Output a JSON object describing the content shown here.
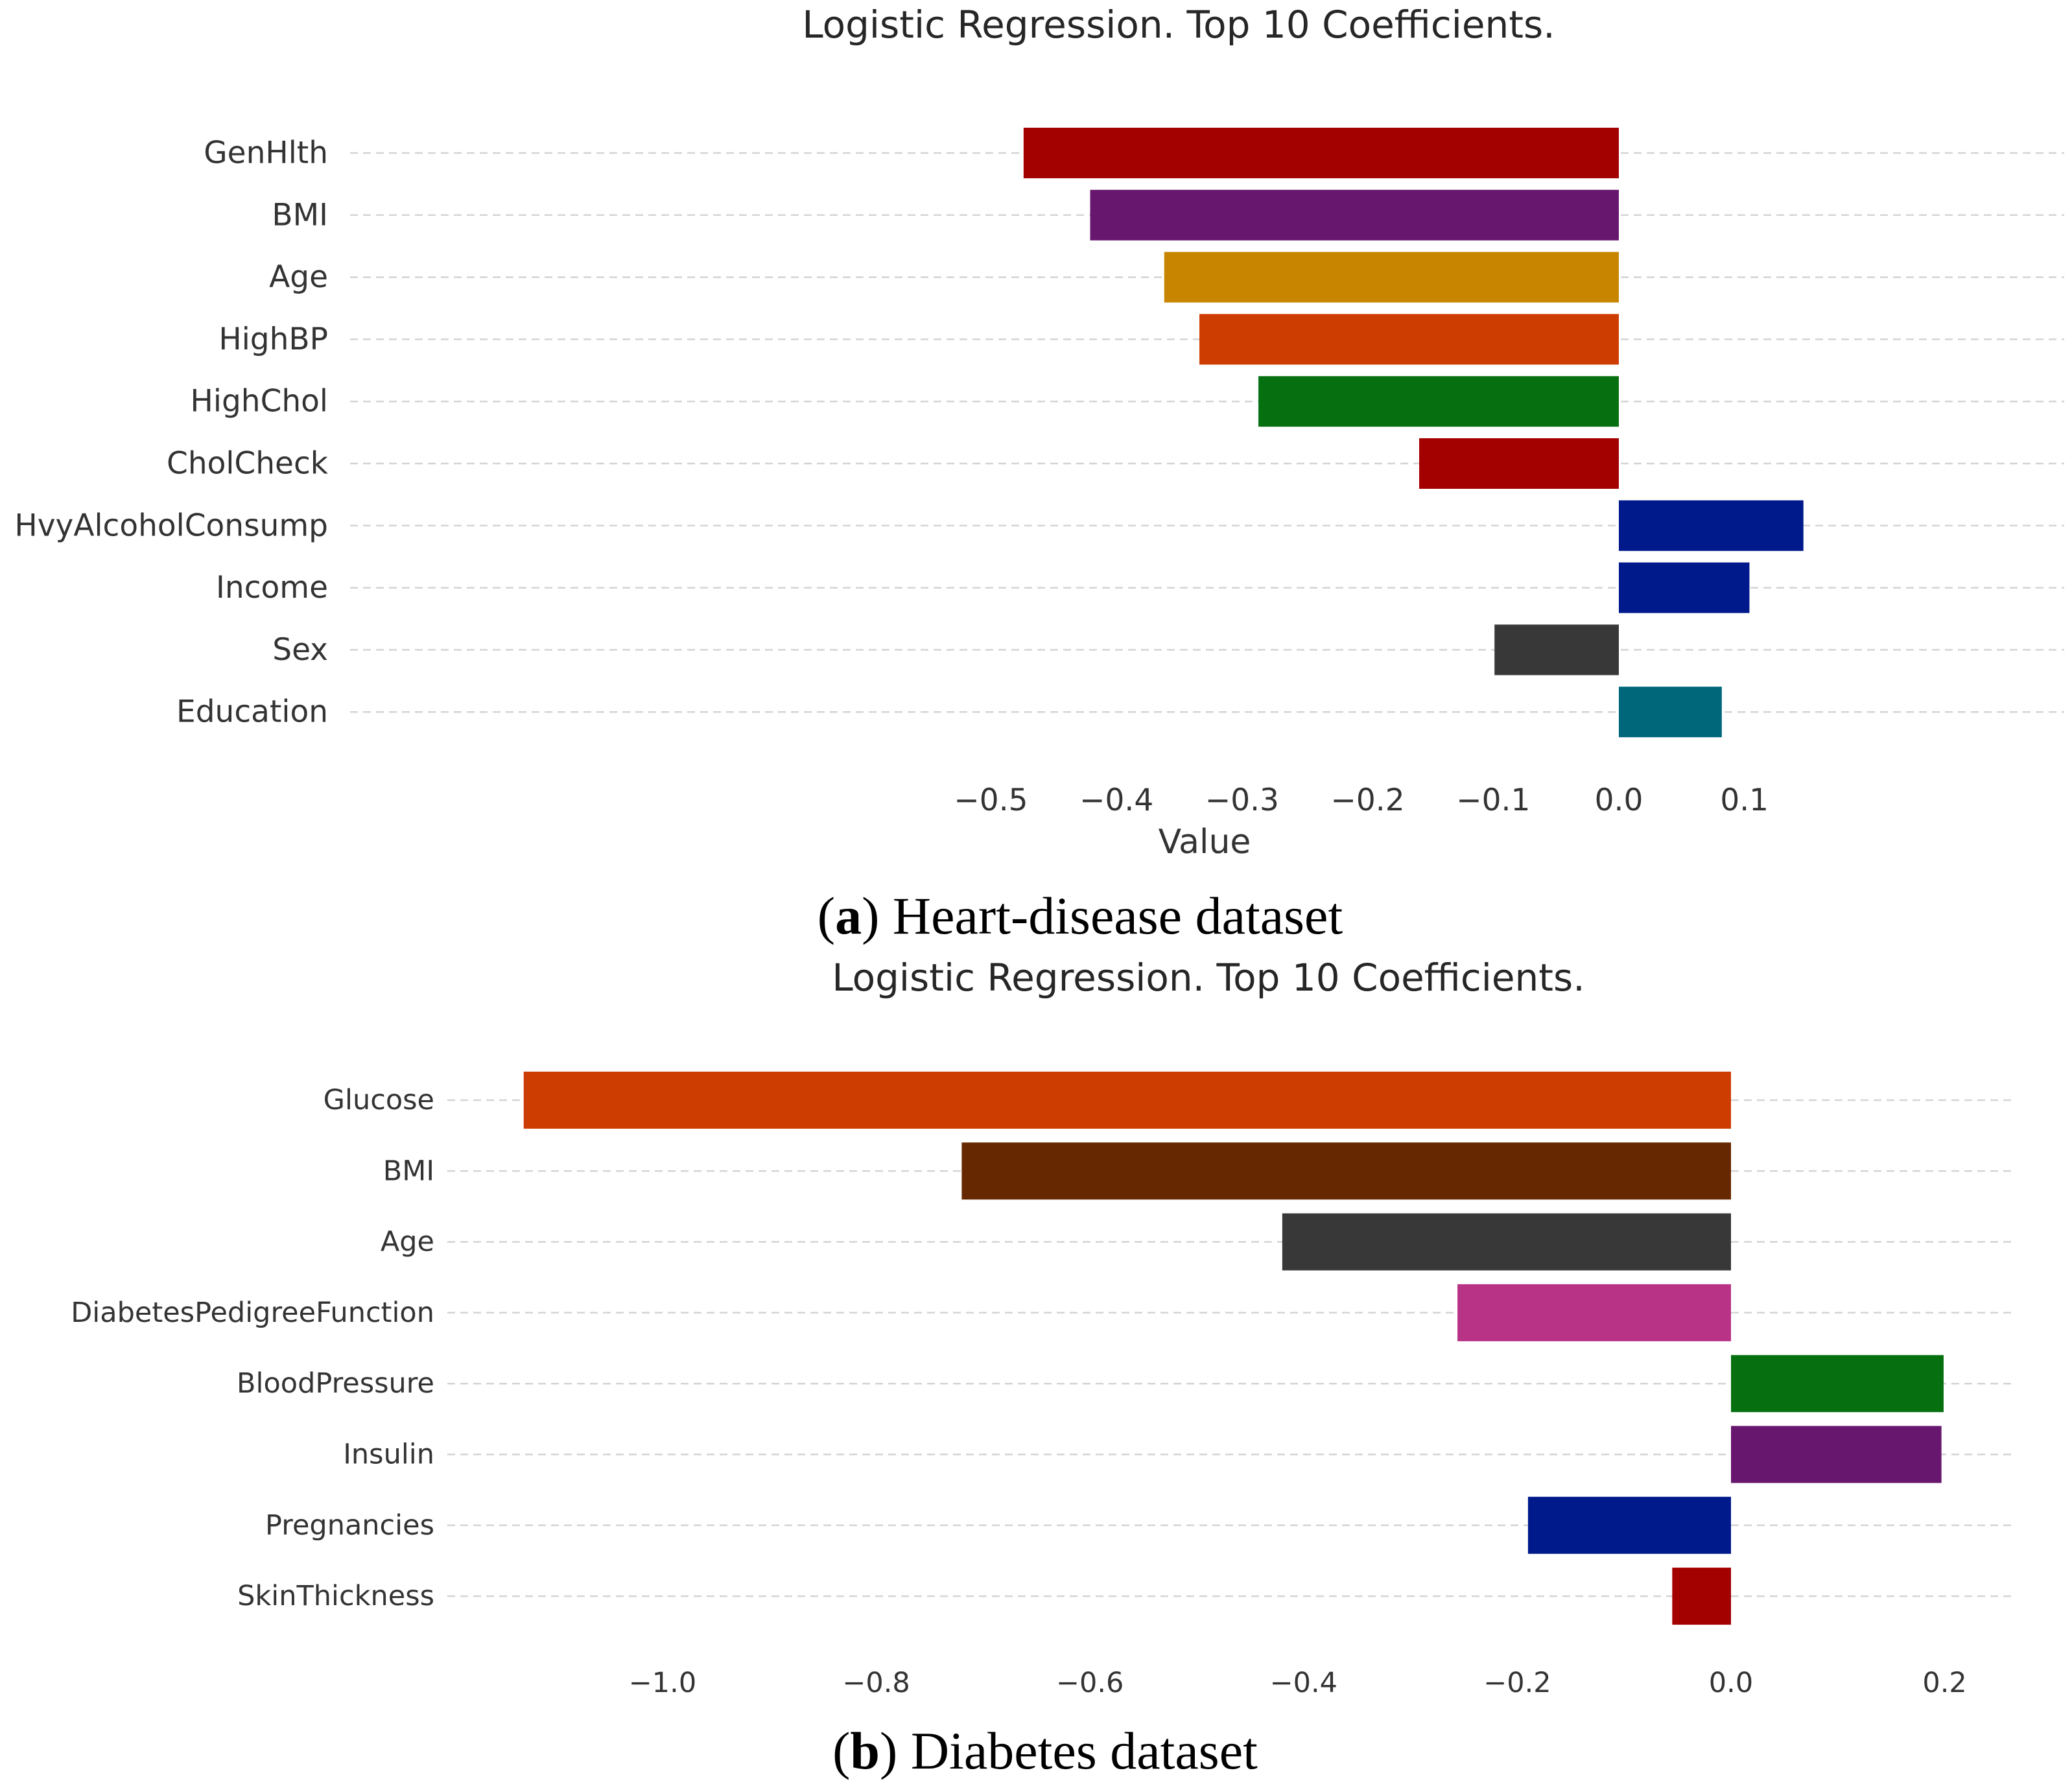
{
  "chart_data": [
    {
      "type": "bar",
      "orientation": "horizontal",
      "title": "Logistic Regression. Top 10 Coefficients.",
      "xlabel": "Value",
      "ylabel": "",
      "xlim": [
        -0.5,
        0.15
      ],
      "grid": true,
      "xticks": [
        -0.5,
        -0.4,
        -0.3,
        -0.2,
        -0.1,
        0.0,
        0.1
      ],
      "xtick_labels": [
        "−0.5",
        "−0.4",
        "−0.3",
        "−0.2",
        "−0.1",
        "0.0",
        "0.1"
      ],
      "categories": [
        "GenHlth",
        "BMI",
        "Age",
        "HighBP",
        "HighChol",
        "CholCheck",
        "HvyAlcoholConsump",
        "Income",
        "Sex",
        "Education"
      ],
      "values": [
        -0.474,
        -0.421,
        -0.362,
        -0.334,
        -0.287,
        -0.159,
        0.147,
        0.104,
        -0.099,
        0.082
      ],
      "colors": [
        "#a30000",
        "#68176f",
        "#c88600",
        "#cd3c00",
        "#067010",
        "#a30000",
        "#001a8c",
        "#001a8c",
        "#383838",
        "#00667a"
      ],
      "caption_letter": "a",
      "caption_text": "Heart-disease dataset"
    },
    {
      "type": "bar",
      "orientation": "horizontal",
      "title": "Logistic Regression. Top 10 Coefficients.",
      "xlabel": "",
      "ylabel": "",
      "xlim": [
        -1.12,
        0.26
      ],
      "grid": true,
      "xticks": [
        -1.0,
        -0.8,
        -0.6,
        -0.4,
        -0.2,
        0.0,
        0.2
      ],
      "xtick_labels": [
        "−1.0",
        "−0.8",
        "−0.6",
        "−0.4",
        "−0.2",
        "0.0",
        "0.2"
      ],
      "categories": [
        "Glucose",
        "BMI",
        "Age",
        "DiabetesPedigreeFunction",
        "BloodPressure",
        "Insulin",
        "Pregnancies",
        "SkinThickness"
      ],
      "values": [
        -1.13,
        -0.72,
        -0.42,
        -0.256,
        0.199,
        0.197,
        -0.19,
        -0.055
      ],
      "colors": [
        "#cd3c00",
        "#652800",
        "#383838",
        "#b83285",
        "#067010",
        "#68176f",
        "#001a8c",
        "#a30000"
      ],
      "caption_letter": "b",
      "caption_text": "Diabetes dataset"
    }
  ]
}
